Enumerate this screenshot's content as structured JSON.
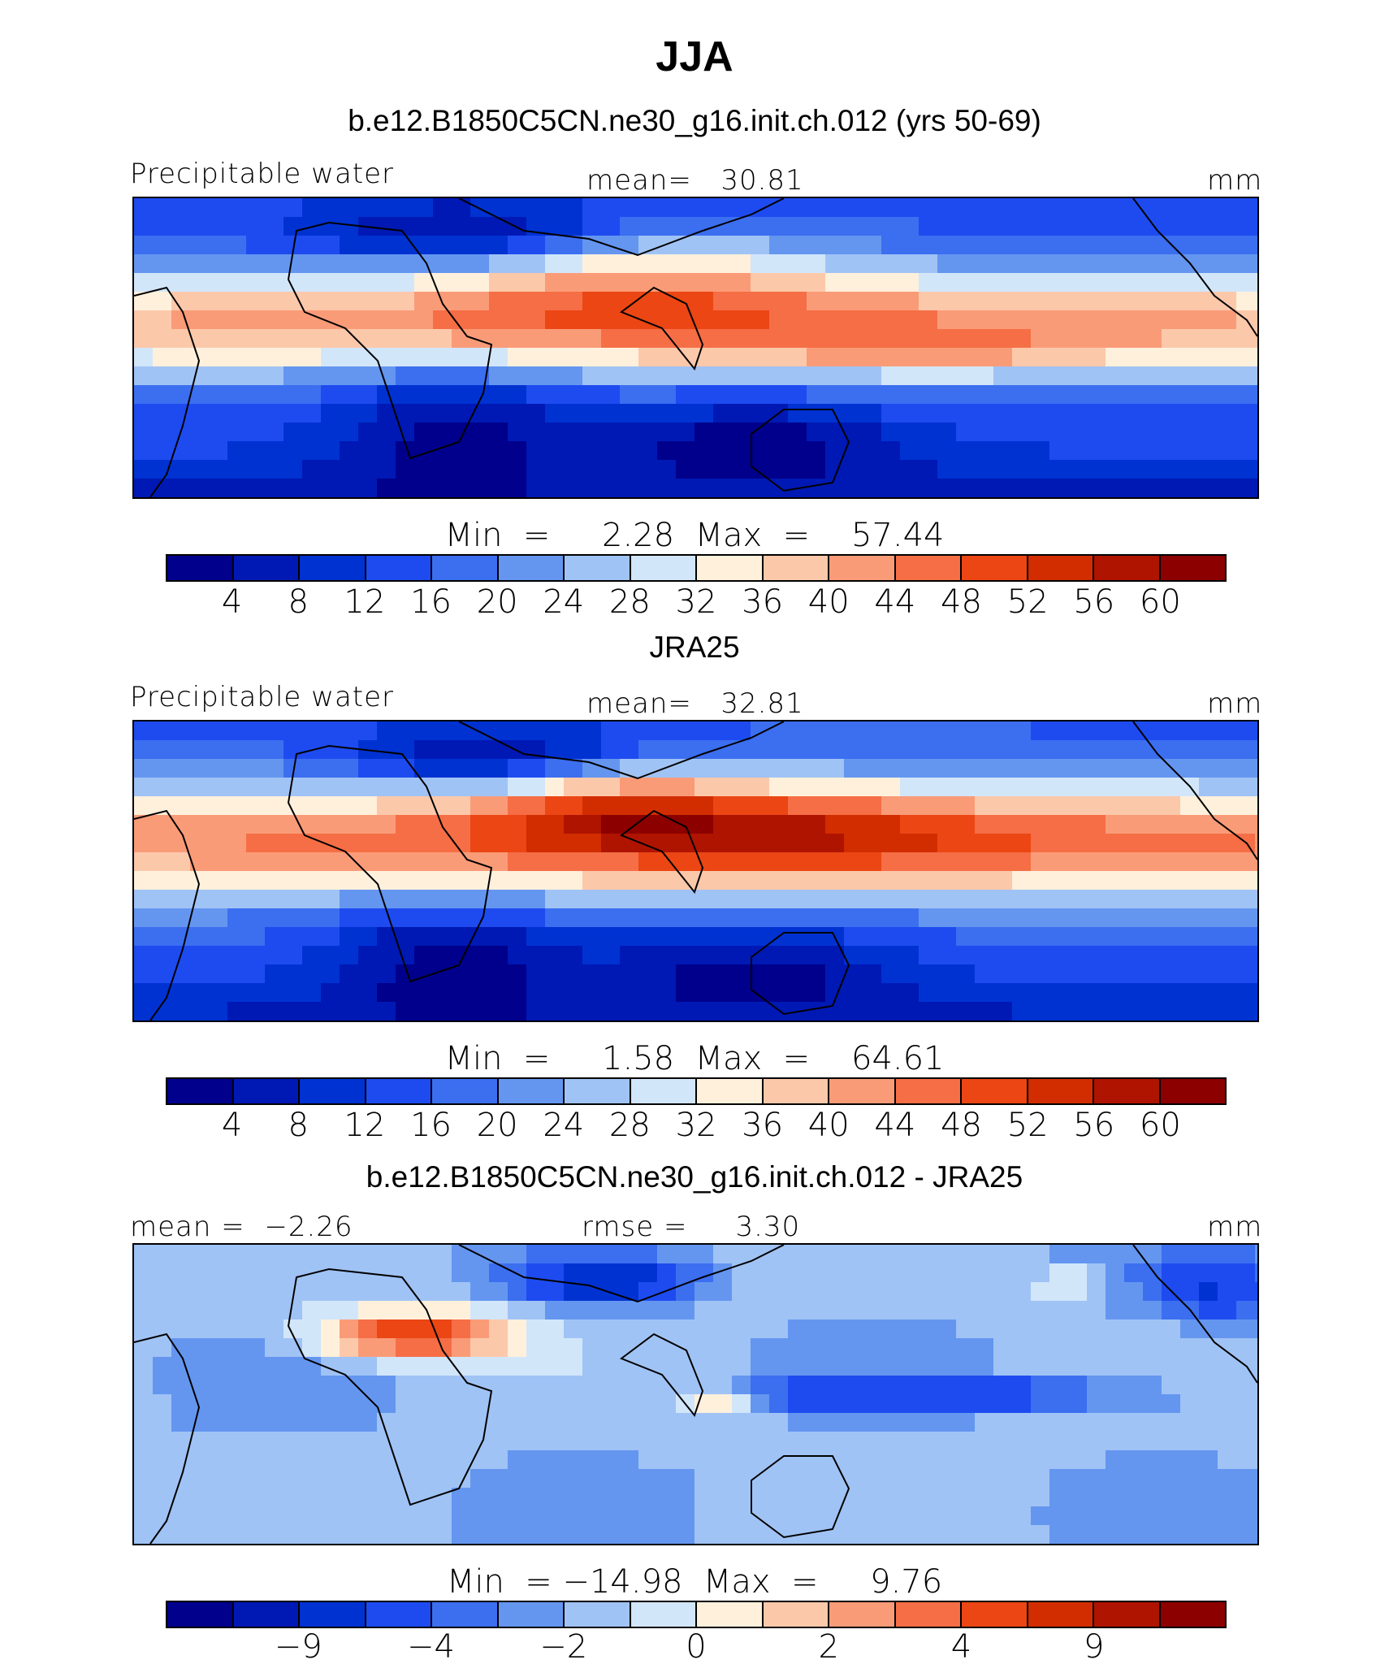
{
  "title": "JJA",
  "panels": [
    {
      "title": "b.e12.B1850C5CN.ne30_g16.init.ch.012 (yrs 50-69)",
      "left_label": "Precipitable water",
      "center_label": "mean=   30.81",
      "right_label": "mm",
      "minmax": "Min  =     2.28  Max  =    57.44",
      "ticks": [
        "4",
        "8",
        "12",
        "16",
        "20",
        "24",
        "28",
        "32",
        "36",
        "40",
        "44",
        "48",
        "52",
        "56",
        "60"
      ],
      "palette": "full",
      "field": "model"
    },
    {
      "title": "JRA25",
      "left_label": "Precipitable water",
      "center_label": "mean=   32.81",
      "right_label": "mm",
      "minmax": "Min  =     1.58  Max  =    64.61",
      "ticks": [
        "4",
        "8",
        "12",
        "16",
        "20",
        "24",
        "28",
        "32",
        "36",
        "40",
        "44",
        "48",
        "52",
        "56",
        "60"
      ],
      "palette": "full",
      "field": "obs"
    },
    {
      "title": "b.e12.B1850C5CN.ne30_g16.init.ch.012 - JRA25",
      "left_label": "mean =  −2.26",
      "center_label": "rmse =     3.30",
      "right_label": "mm",
      "minmax": "Min  = −14.98  Max  =     9.76",
      "ticks": [
        "−9",
        "−4",
        "−2",
        "0",
        "2",
        "4",
        "9"
      ],
      "tick_positions": [
        2,
        4,
        6,
        8,
        10,
        12,
        14
      ],
      "palette": "full",
      "field": "diff"
    }
  ],
  "colors": [
    "#00008c",
    "#0019b4",
    "#0032d2",
    "#1e4bf0",
    "#3c6ef0",
    "#6496f0",
    "#a0c3f5",
    "#d2e6fa",
    "#fff0dc",
    "#fcc8aa",
    "#fa9b78",
    "#f56e46",
    "#eb4614",
    "#d22d00",
    "#af1400",
    "#8c0000"
  ]
}
